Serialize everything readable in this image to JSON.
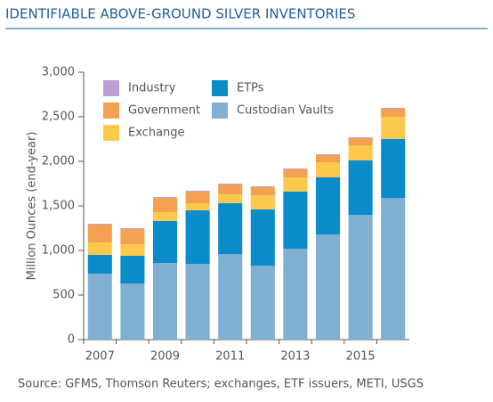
{
  "chart_data": {
    "type": "stacked_bar",
    "title": "IDENTIFIABLE ABOVE-GROUND SILVER INVENTORIES",
    "y_label": "Million Ounces (end-year)",
    "source": "Source: GFMS, Thomson Reuters; exchanges, ETF issuers, METI, USGS",
    "categories": [
      "2007",
      null,
      "2009",
      null,
      "2011",
      null,
      "2013",
      null,
      "2015",
      null
    ],
    "series": [
      {
        "name": "Custodian Vaults",
        "color": "#7fb0d2",
        "values": [
          740,
          630,
          860,
          850,
          960,
          830,
          1020,
          1180,
          1400,
          1590
        ]
      },
      {
        "name": "ETPs",
        "color": "#0a8bca",
        "values": [
          210,
          310,
          470,
          600,
          570,
          630,
          640,
          640,
          610,
          660
        ]
      },
      {
        "name": "Exchange",
        "color": "#fdc94c",
        "values": [
          140,
          130,
          100,
          80,
          100,
          160,
          160,
          170,
          170,
          250
        ]
      },
      {
        "name": "Government",
        "color": "#f5a152",
        "values": [
          200,
          170,
          160,
          130,
          110,
          90,
          90,
          80,
          80,
          90
        ]
      },
      {
        "name": "Industry",
        "color": "#b9a2d3",
        "values": [
          10,
          10,
          10,
          10,
          10,
          10,
          10,
          10,
          10,
          10
        ]
      }
    ],
    "ylim": [
      0,
      3000
    ],
    "yticks": [
      0,
      500,
      {
        "value": 1000,
        "label": "1,000"
      },
      {
        "value": 1500,
        "label": "1,500"
      },
      {
        "value": 2000,
        "label": "2,000"
      },
      {
        "value": 2500,
        "label": "2,500"
      },
      {
        "value": 3000,
        "label": "3,000"
      }
    ],
    "legend": "top-left",
    "grid": false
  }
}
